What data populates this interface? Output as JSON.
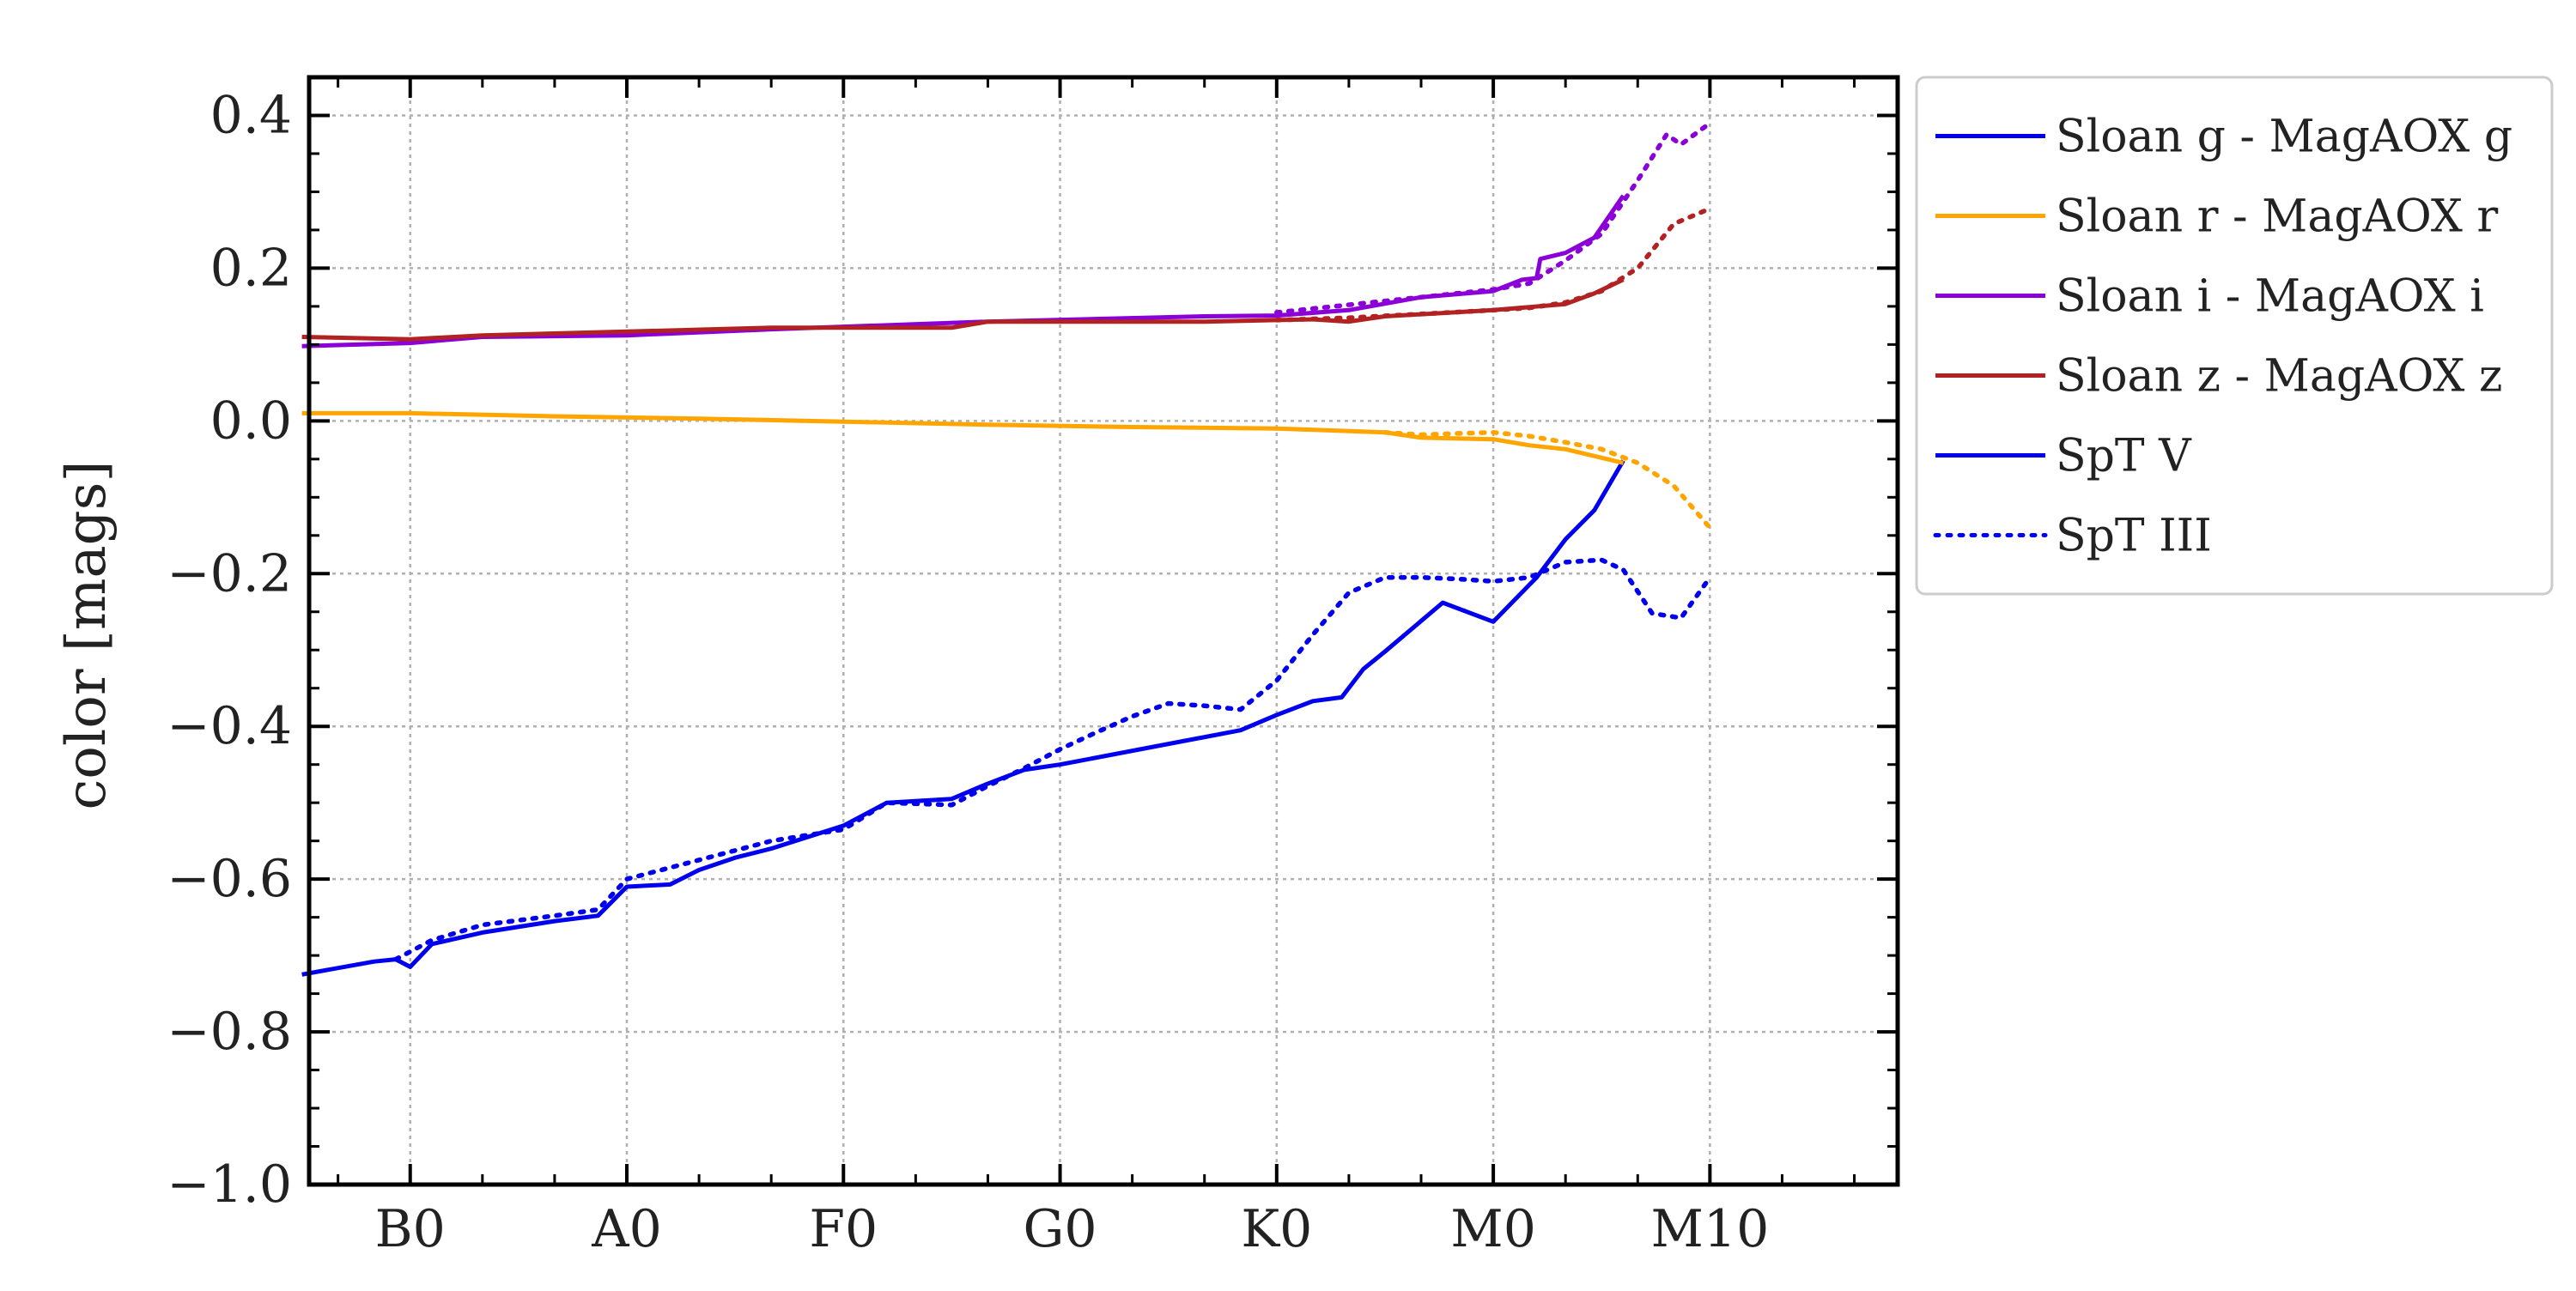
{
  "chart_data": {
    "type": "line",
    "xlabel": "",
    "ylabel": "color [mags]",
    "ylim": [
      -1.0,
      0.45
    ],
    "xlim": [
      -1.4,
      20.6
    ],
    "x_ticks": [
      {
        "value": 0,
        "label": "B0"
      },
      {
        "value": 3,
        "label": "A0"
      },
      {
        "value": 6,
        "label": "F0"
      },
      {
        "value": 9,
        "label": "G0"
      },
      {
        "value": 12,
        "label": "K0"
      },
      {
        "value": 15,
        "label": "M0"
      },
      {
        "value": 18,
        "label": "M10"
      }
    ],
    "y_ticks": [
      {
        "value": 0.4,
        "label": "0.4"
      },
      {
        "value": 0.2,
        "label": "0.2"
      },
      {
        "value": 0.0,
        "label": "0.0"
      },
      {
        "value": -0.2,
        "label": "−0.2"
      },
      {
        "value": -0.4,
        "label": "−0.4"
      },
      {
        "value": -0.6,
        "label": "−0.6"
      },
      {
        "value": -0.8,
        "label": "−0.8"
      },
      {
        "value": -1.0,
        "label": "−1.0"
      }
    ],
    "grid": true,
    "legend_position": "outside-right-top",
    "legend": [
      {
        "label": "Sloan g - MagAOX g",
        "color": "#0000ee",
        "style": "solid"
      },
      {
        "label": "Sloan r - MagAOX r",
        "color": "#ffa500",
        "style": "solid"
      },
      {
        "label": "Sloan i - MagAOX i",
        "color": "#8b00d6",
        "style": "solid"
      },
      {
        "label": "Sloan z - MagAOX z",
        "color": "#b22222",
        "style": "solid"
      },
      {
        "label": "SpT V",
        "color": "#0000ee",
        "style": "solid"
      },
      {
        "label": "SpT III",
        "color": "#0000ee",
        "style": "dotted"
      }
    ],
    "series": [
      {
        "band": "g",
        "class": "V",
        "color": "#0000ee",
        "style": "solid",
        "x": [
          -1.5,
          -0.5,
          -0.2,
          0,
          0.3,
          1,
          2,
          2.6,
          3,
          3.6,
          4,
          4.5,
          5,
          6,
          6.6,
          7.5,
          8,
          8.5,
          9,
          11.5,
          12,
          12.5,
          12.9,
          13.2,
          13.5,
          14.3,
          15,
          15.6,
          16,
          16.4,
          16.8
        ],
        "y": [
          -0.725,
          -0.708,
          -0.705,
          -0.715,
          -0.685,
          -0.67,
          -0.655,
          -0.648,
          -0.61,
          -0.607,
          -0.588,
          -0.572,
          -0.56,
          -0.53,
          -0.5,
          -0.495,
          -0.475,
          -0.457,
          -0.45,
          -0.405,
          -0.385,
          -0.367,
          -0.362,
          -0.325,
          -0.302,
          -0.238,
          -0.263,
          -0.205,
          -0.155,
          -0.117,
          -0.052
        ]
      },
      {
        "band": "g",
        "class": "III",
        "color": "#0000ee",
        "style": "dotted",
        "x": [
          -0.2,
          0.3,
          1,
          2,
          2.6,
          3,
          4,
          5,
          6,
          6.6,
          7.5,
          8,
          8.5,
          9,
          9.5,
          10,
          10.5,
          11,
          11.5,
          12,
          12.5,
          13,
          13.5,
          14,
          14.5,
          15,
          15.5,
          16,
          16.5,
          16.8,
          17.2,
          17.6,
          18
        ],
        "y": [
          -0.705,
          -0.68,
          -0.66,
          -0.648,
          -0.64,
          -0.6,
          -0.575,
          -0.55,
          -0.535,
          -0.5,
          -0.503,
          -0.478,
          -0.455,
          -0.43,
          -0.408,
          -0.387,
          -0.37,
          -0.373,
          -0.378,
          -0.34,
          -0.28,
          -0.225,
          -0.205,
          -0.205,
          -0.207,
          -0.21,
          -0.205,
          -0.185,
          -0.182,
          -0.195,
          -0.252,
          -0.258,
          -0.205
        ]
      },
      {
        "band": "r",
        "class": "V",
        "color": "#ffa500",
        "style": "solid",
        "x": [
          -1.5,
          0,
          2,
          4,
          6,
          8,
          10,
          12,
          13.5,
          14,
          15,
          15.5,
          16,
          16.8
        ],
        "y": [
          0.01,
          0.01,
          0.006,
          0.003,
          -0.001,
          -0.005,
          -0.008,
          -0.01,
          -0.015,
          -0.022,
          -0.024,
          -0.032,
          -0.037,
          -0.055
        ]
      },
      {
        "band": "r",
        "class": "III",
        "color": "#ffa500",
        "style": "dotted",
        "x": [
          13.5,
          14,
          15,
          15.5,
          16,
          16.5,
          17,
          17.5,
          18
        ],
        "y": [
          -0.015,
          -0.018,
          -0.015,
          -0.02,
          -0.028,
          -0.037,
          -0.055,
          -0.085,
          -0.14
        ]
      },
      {
        "band": "i",
        "class": "V",
        "color": "#8b00d6",
        "style": "solid",
        "x": [
          -1.5,
          0,
          1,
          3,
          5,
          8,
          11,
          12,
          13,
          14,
          15,
          15.4,
          15.6,
          15.65,
          16,
          16.4,
          16.8
        ],
        "y": [
          0.098,
          0.102,
          0.11,
          0.112,
          0.12,
          0.13,
          0.137,
          0.138,
          0.145,
          0.162,
          0.17,
          0.185,
          0.187,
          0.212,
          0.22,
          0.24,
          0.295
        ]
      },
      {
        "band": "i",
        "class": "III",
        "color": "#8b00d6",
        "style": "dotted",
        "x": [
          12,
          13,
          14,
          15,
          15.5,
          16,
          16.5,
          17,
          17.4,
          17.6,
          18
        ],
        "y": [
          0.142,
          0.152,
          0.162,
          0.172,
          0.18,
          0.21,
          0.245,
          0.315,
          0.375,
          0.362,
          0.39
        ]
      },
      {
        "band": "z",
        "class": "V",
        "color": "#b22222",
        "style": "solid",
        "x": [
          -1.5,
          0,
          1,
          3,
          5,
          7.5,
          8,
          11,
          12,
          12.5,
          13,
          13.5,
          15,
          16,
          16.4,
          16.8
        ],
        "y": [
          0.11,
          0.107,
          0.112,
          0.117,
          0.122,
          0.122,
          0.13,
          0.13,
          0.132,
          0.133,
          0.13,
          0.137,
          0.145,
          0.153,
          0.167,
          0.185
        ]
      },
      {
        "band": "z",
        "class": "III",
        "color": "#b22222",
        "style": "dotted",
        "x": [
          12,
          13,
          14,
          15,
          15.5,
          16,
          16.5,
          17,
          17.5,
          18
        ],
        "y": [
          0.132,
          0.135,
          0.14,
          0.145,
          0.148,
          0.155,
          0.17,
          0.2,
          0.258,
          0.278
        ]
      }
    ]
  }
}
